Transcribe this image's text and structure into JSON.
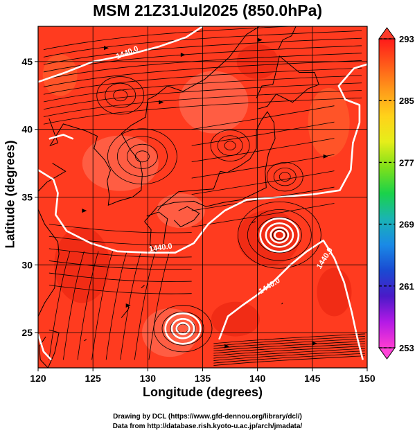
{
  "title": "MSM 21Z31Jul2025 (850.0hPa)",
  "credits": {
    "line1": "Drawing by DCL (https://www.gfd-dennou.org/library/dcl/)",
    "line2": "Data from http://database.rish.kyoto-u.ac.jp/arch/jmadata/"
  },
  "colors": {
    "field_base": "#ff3b1f",
    "field_dark": "#e5200c",
    "field_warm": "#ff6a30",
    "field_pale": "#ff7a60",
    "contour": "#ffffff",
    "coast": "#000000",
    "streamline": "#000000"
  },
  "chart_data": {
    "type": "heatmap",
    "xlabel": "Longitude (degrees)",
    "ylabel": "Latitude  (degrees)",
    "xlim": [
      120,
      150
    ],
    "ylim": [
      22.4,
      47.6
    ],
    "xticks": [
      120,
      125,
      130,
      135,
      140,
      145,
      150
    ],
    "yticks": [
      25,
      30,
      35,
      40,
      45
    ],
    "grid": true,
    "colorbar": {
      "min": 253,
      "max": 293,
      "ticks": [
        293,
        285,
        277,
        269,
        261,
        253
      ],
      "colors": [
        "#ff1a1a",
        "#ff5a1a",
        "#ff9a1a",
        "#ffd21a",
        "#e6ee1a",
        "#7ee01a",
        "#1ad24a",
        "#1ab4b4",
        "#1a8ae6",
        "#1a4ad2",
        "#4a1ac8",
        "#b41ae6",
        "#ff3cd2"
      ]
    },
    "contours": [
      {
        "label": "1440.0",
        "lon": 128.2,
        "lat": 45.5,
        "angle": -22
      },
      {
        "label": "1440.0",
        "lon": 131.2,
        "lat": 31.1,
        "angle": -8
      },
      {
        "label": "1440.0",
        "lon": 141.2,
        "lat": 28.3,
        "angle": -32
      },
      {
        "label": "1440.0",
        "lon": 146.3,
        "lat": 30.4,
        "angle": -58
      }
    ],
    "circulations": [
      {
        "kind": "cyclone",
        "lon": 142.0,
        "lat": 32.2
      },
      {
        "kind": "cyclone",
        "lon": 133.2,
        "lat": 25.3
      }
    ]
  }
}
